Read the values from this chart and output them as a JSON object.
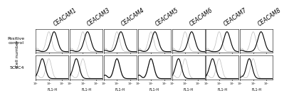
{
  "ceacam_labels": [
    "CEACAM1",
    "CEACAM3",
    "CEACAM4",
    "CEACAM5",
    "CEACAM6",
    "CEACAM7",
    "CEACAM8"
  ],
  "row_labels": [
    "Positive\ncontrol",
    "5C8C4"
  ],
  "ylabel": "Cell number",
  "xlabel": "FL1-H",
  "background": "#ffffff",
  "thin_line_color": "#aaaaaa",
  "thick_line_color": "#000000",
  "panel_bg": "#ffffff",
  "title_fontsize": 5.5,
  "label_fontsize": 4.5,
  "axis_fontsize": 3.5,
  "positive_control_peaks": [
    {
      "thin": [
        3.0,
        0.35
      ],
      "thick": [
        3.4,
        1.0
      ]
    },
    {
      "thin": [
        3.0,
        0.35
      ],
      "thick": [
        3.35,
        1.0
      ]
    },
    {
      "thin": [
        3.0,
        0.35
      ],
      "thick": [
        3.3,
        0.9
      ]
    },
    {
      "thin": [
        3.0,
        0.35
      ],
      "thick": [
        3.3,
        0.9
      ]
    },
    {
      "thin": [
        3.0,
        0.35
      ],
      "thick": [
        3.5,
        1.0
      ]
    },
    {
      "thin": [
        3.0,
        0.35
      ],
      "thick": [
        3.6,
        1.0
      ]
    },
    {
      "thin": [
        3.0,
        0.35
      ],
      "thick": [
        3.6,
        0.9
      ]
    }
  ],
  "antibody_peaks": [
    {
      "thin": [
        3.0,
        0.35
      ],
      "thick": [
        2.5,
        1.0
      ]
    },
    {
      "thin": [
        3.0,
        0.35
      ],
      "thick": [
        2.5,
        1.0
      ]
    },
    {
      "thin": [
        3.0,
        0.35
      ],
      "thick": [
        3.0,
        0.35
      ]
    },
    {
      "thin": [
        3.0,
        0.35
      ],
      "thick": [
        3.0,
        0.35
      ]
    },
    {
      "thin": [
        3.0,
        0.35
      ],
      "thick": [
        2.5,
        1.0
      ]
    },
    {
      "thin": [
        3.0,
        0.35
      ],
      "thick": [
        2.5,
        1.0
      ]
    },
    {
      "thin": [
        3.0,
        0.35
      ],
      "thick": [
        2.7,
        1.0
      ]
    }
  ]
}
